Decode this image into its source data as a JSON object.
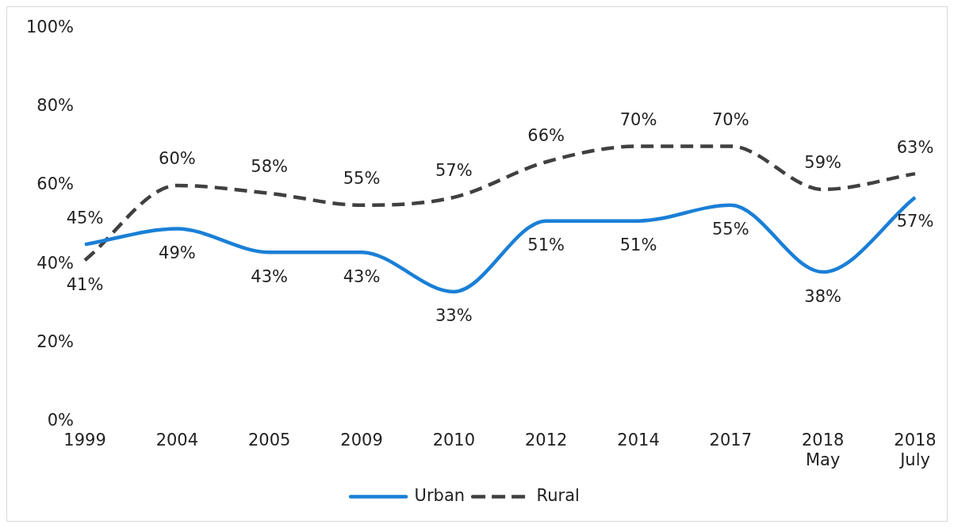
{
  "chart_data": {
    "type": "line",
    "categories": [
      "1999",
      "2004",
      "2005",
      "2009",
      "2010",
      "2012",
      "2014",
      "2017",
      "2018 May",
      "2018 July"
    ],
    "series": [
      {
        "name": "Urban",
        "color": "#1a7fd6",
        "line_style": "solid",
        "values": [
          45,
          49,
          43,
          43,
          33,
          51,
          51,
          55,
          38,
          57
        ],
        "value_labels": [
          "45%",
          "49%",
          "43%",
          "43%",
          "33%",
          "51%",
          "51%",
          "55%",
          "38%",
          "57%"
        ]
      },
      {
        "name": "Rural",
        "color": "#404040",
        "line_style": "dashed",
        "values": [
          41,
          60,
          58,
          55,
          57,
          66,
          70,
          70,
          59,
          63
        ],
        "value_labels": [
          "41%",
          "60%",
          "58%",
          "55%",
          "57%",
          "66%",
          "70%",
          "70%",
          "59%",
          "63%"
        ]
      }
    ],
    "ylim": [
      0,
      100
    ],
    "yticks": [
      {
        "value": 0,
        "label": "0%"
      },
      {
        "value": 20,
        "label": "20%"
      },
      {
        "value": 40,
        "label": "40%"
      },
      {
        "value": 60,
        "label": "60%"
      },
      {
        "value": 80,
        "label": "80%"
      },
      {
        "value": 100,
        "label": "100%"
      }
    ],
    "grid": false,
    "legend": "bottom",
    "marker": "none"
  }
}
